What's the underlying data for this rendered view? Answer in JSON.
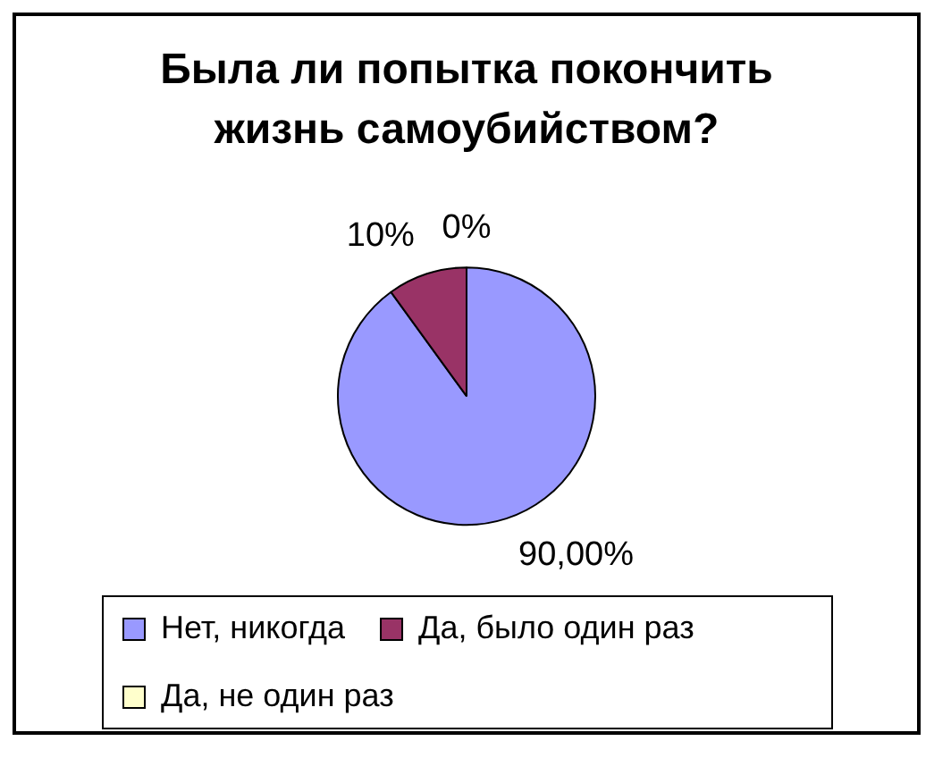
{
  "chart_data": {
    "type": "pie",
    "title": "Была ли попытка покончить жизнь самоубийством?",
    "categories": [
      "Нет, никогда",
      "Да, было один раз",
      "Да, не один раз"
    ],
    "values": [
      90,
      10,
      0
    ],
    "colors": [
      "#9999ff",
      "#993366",
      "#ffffcc"
    ],
    "value_labels": [
      "90,00%",
      "10%",
      "0%"
    ],
    "legend": "bottom"
  }
}
